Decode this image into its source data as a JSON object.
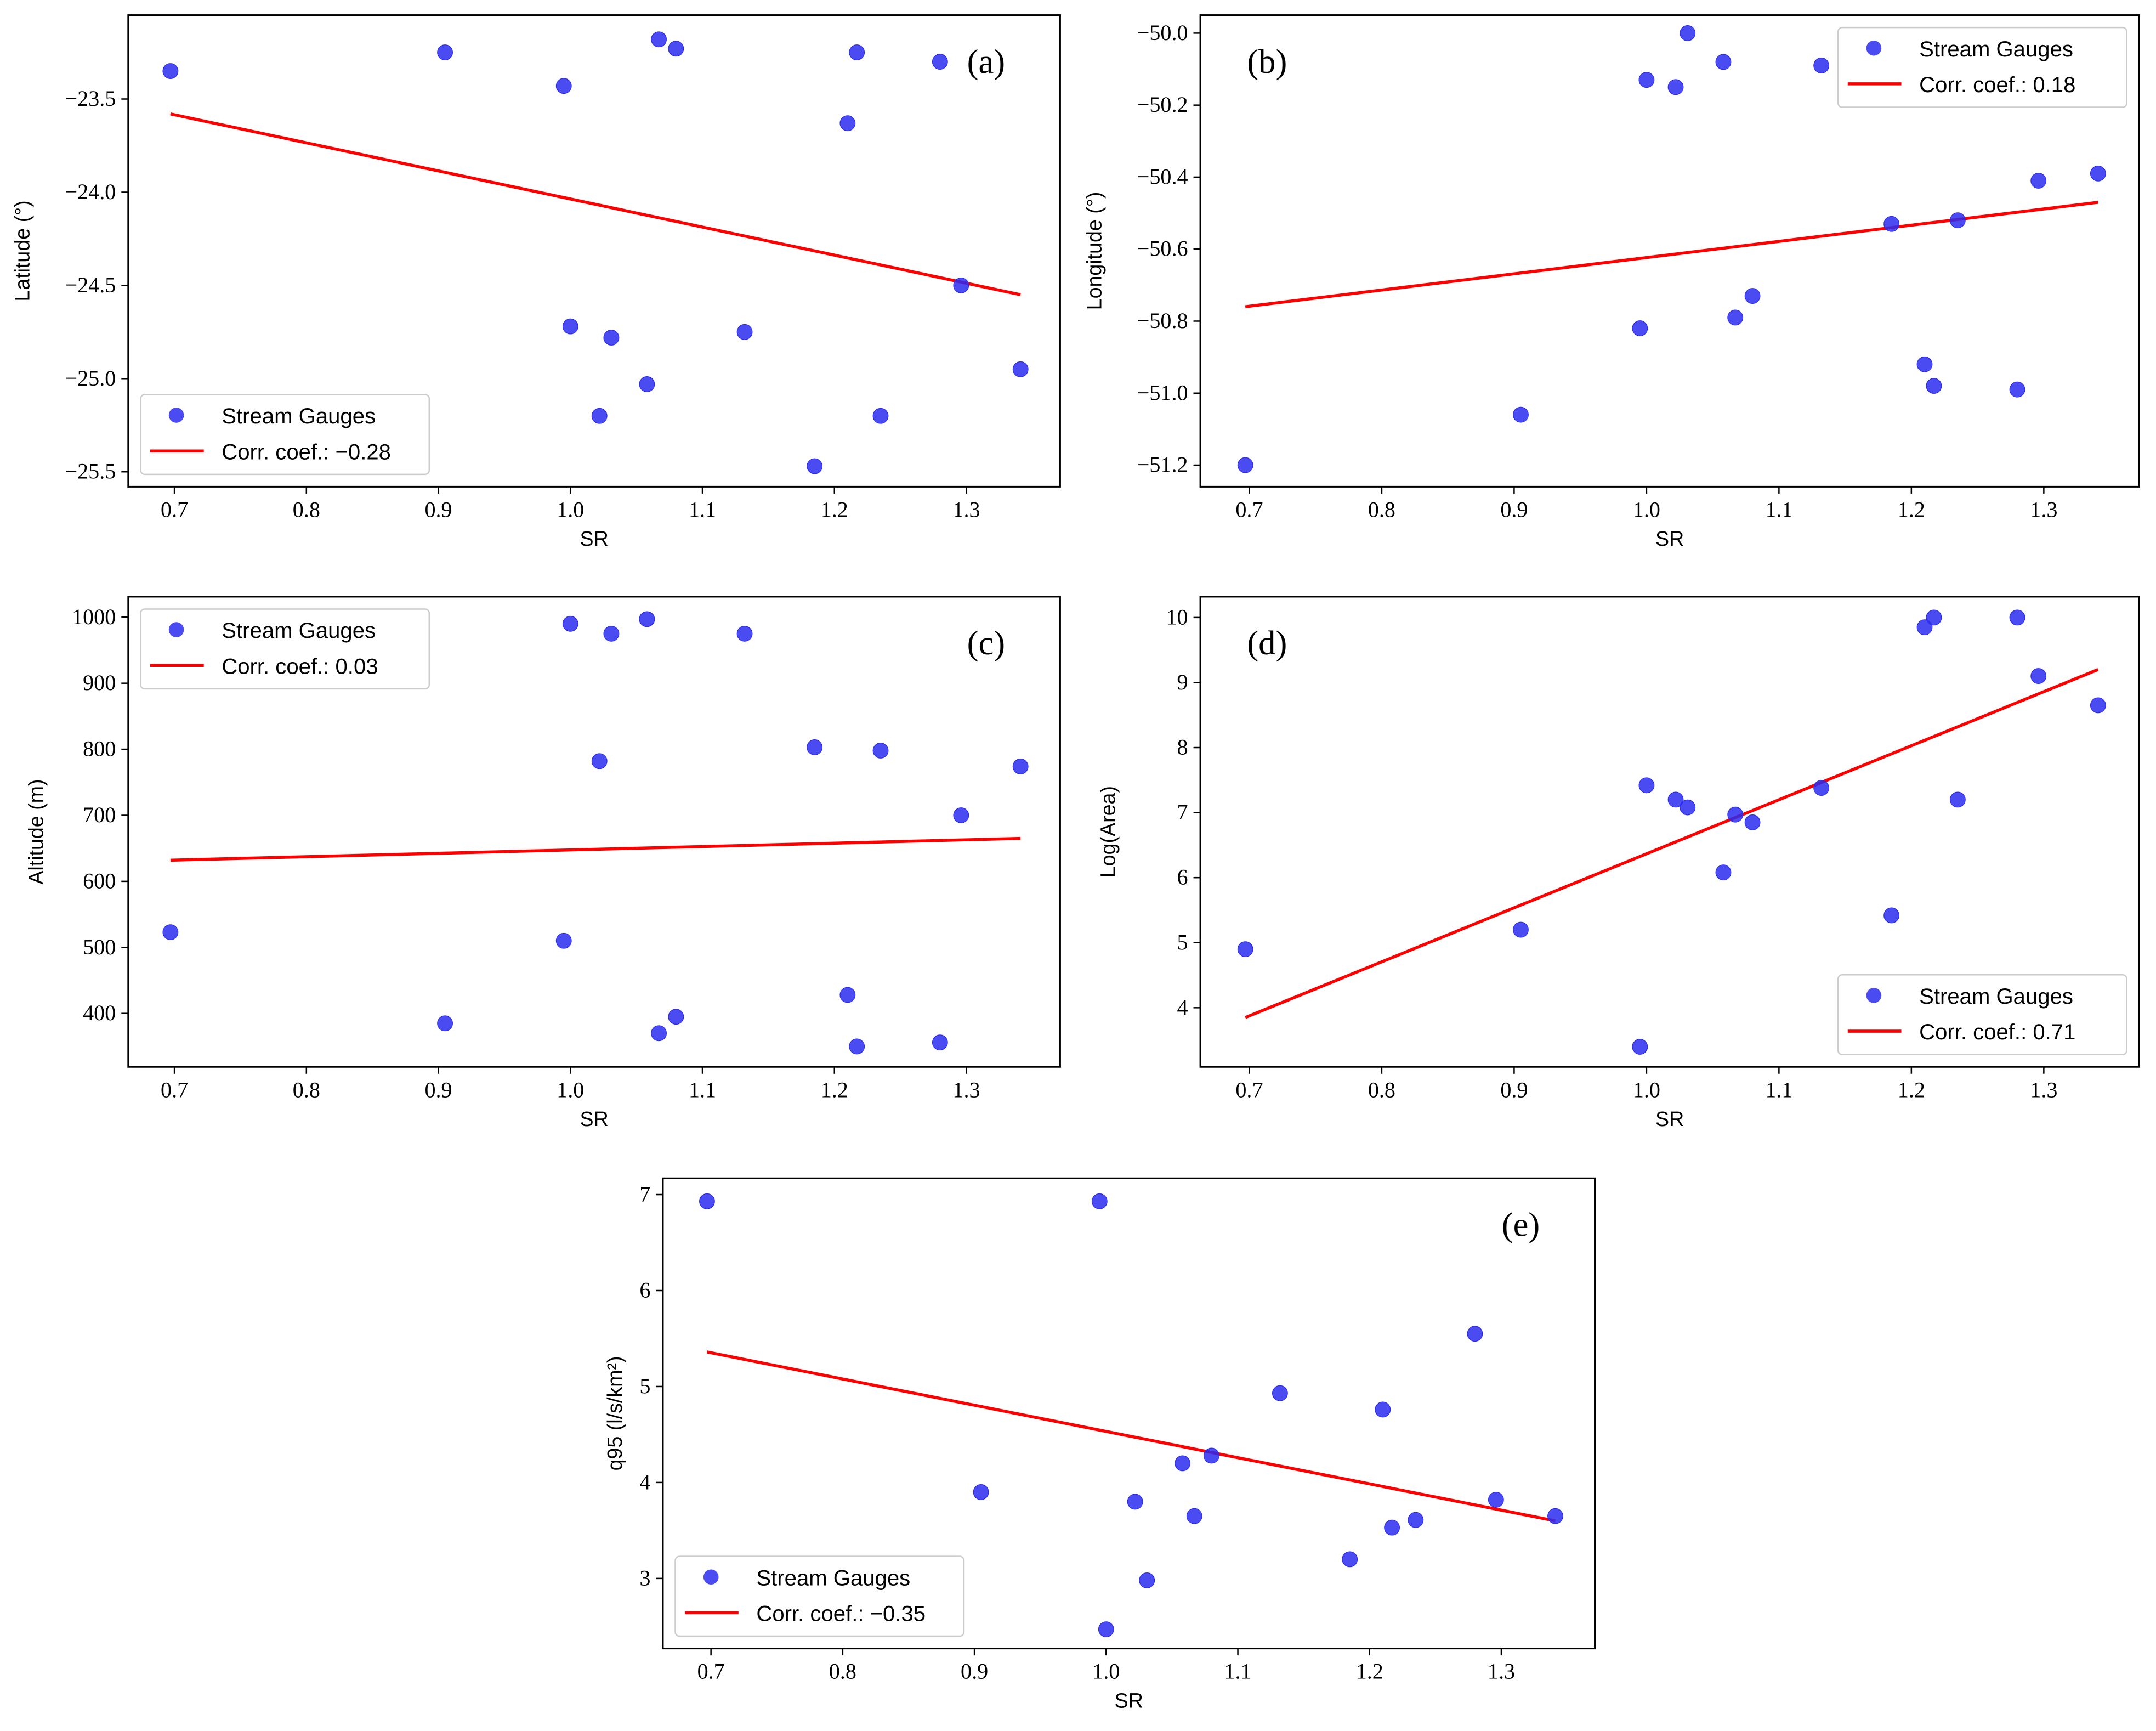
{
  "chart_data": [
    {
      "type": "scatter",
      "panel_label": "(a)",
      "xlabel": "SR",
      "ylabel": "Latitude (°)",
      "xlim": [
        0.665,
        1.371
      ],
      "ylim": [
        -25.58,
        -23.05
      ],
      "xticks": [
        0.7,
        0.8,
        0.9,
        1.0,
        1.1,
        1.2,
        1.3
      ],
      "yticks": [
        -23.5,
        -24.0,
        -24.5,
        -25.0,
        -25.5
      ],
      "ytick_labels": [
        "−23.5",
        "−24.0",
        "−24.5",
        "−25.0",
        "−25.5"
      ],
      "legend": {
        "placement": "lower-left",
        "entries": [
          "Stream Gauges",
          "Corr. coef.: −0.28"
        ]
      },
      "x": [
        0.697,
        0.905,
        0.995,
        1.0,
        1.022,
        1.031,
        1.058,
        1.067,
        1.08,
        1.132,
        1.185,
        1.21,
        1.217,
        1.235,
        1.28,
        1.296,
        1.341
      ],
      "y": [
        -23.35,
        -23.25,
        -23.43,
        -24.72,
        -25.2,
        -24.78,
        -25.03,
        -23.18,
        -23.23,
        -24.75,
        -25.47,
        -23.63,
        -23.25,
        -25.2,
        -23.3,
        -24.5,
        -24.95
      ],
      "fit": {
        "x": [
          0.697,
          1.341
        ],
        "y": [
          -23.58,
          -24.55
        ]
      }
    },
    {
      "type": "scatter",
      "panel_label": "(b)",
      "xlabel": "SR",
      "ylabel": "Longitude (°)",
      "xlim": [
        0.663,
        1.372
      ],
      "ylim": [
        -51.26,
        -49.95
      ],
      "xticks": [
        0.7,
        0.8,
        0.9,
        1.0,
        1.1,
        1.2,
        1.3
      ],
      "yticks": [
        -50.0,
        -50.2,
        -50.4,
        -50.6,
        -50.8,
        -51.0,
        -51.2
      ],
      "ytick_labels": [
        "−50.0",
        "−50.2",
        "−50.4",
        "−50.6",
        "−50.8",
        "−51.0",
        "−51.2"
      ],
      "legend": {
        "placement": "upper-right",
        "entries": [
          "Stream Gauges",
          "Corr. coef.: 0.18"
        ]
      },
      "x": [
        0.697,
        0.905,
        0.995,
        1.0,
        1.022,
        1.031,
        1.058,
        1.067,
        1.08,
        1.132,
        1.185,
        1.21,
        1.217,
        1.235,
        1.28,
        1.296,
        1.341
      ],
      "y": [
        -51.2,
        -51.06,
        -50.82,
        -50.13,
        -50.15,
        -50.0,
        -50.08,
        -50.79,
        -50.73,
        -50.09,
        -50.53,
        -50.92,
        -50.98,
        -50.52,
        -50.99,
        -50.41,
        -50.39
      ],
      "fit": {
        "x": [
          0.697,
          1.341
        ],
        "y": [
          -50.76,
          -50.47
        ]
      }
    },
    {
      "type": "scatter",
      "panel_label": "(c)",
      "xlabel": "SR",
      "ylabel": "Altitude (m)",
      "xlim": [
        0.665,
        1.371
      ],
      "ylim": [
        319,
        1031
      ],
      "xticks": [
        0.7,
        0.8,
        0.9,
        1.0,
        1.1,
        1.2,
        1.3
      ],
      "yticks": [
        1000,
        900,
        800,
        700,
        600,
        500,
        400
      ],
      "ytick_labels": [
        "1000",
        "900",
        "800",
        "700",
        "600",
        "500",
        "400"
      ],
      "legend": {
        "placement": "upper-left",
        "entries": [
          "Stream Gauges",
          "Corr. coef.: 0.03"
        ]
      },
      "x": [
        0.697,
        0.905,
        0.995,
        1.0,
        1.022,
        1.031,
        1.058,
        1.067,
        1.08,
        1.132,
        1.185,
        1.21,
        1.217,
        1.235,
        1.28,
        1.296,
        1.341
      ],
      "y": [
        523,
        385,
        510,
        990,
        782,
        975,
        997,
        370,
        395,
        975,
        803,
        428,
        350,
        798,
        356,
        700,
        774
      ],
      "fit": {
        "x": [
          0.697,
          1.341
        ],
        "y": [
          632,
          665
        ]
      }
    },
    {
      "type": "scatter",
      "panel_label": "(d)",
      "xlabel": "SR",
      "ylabel": "Log(Area)",
      "xlim": [
        0.663,
        1.372
      ],
      "ylim": [
        3.09,
        10.32
      ],
      "xticks": [
        0.7,
        0.8,
        0.9,
        1.0,
        1.1,
        1.2,
        1.3
      ],
      "yticks": [
        10,
        9,
        8,
        7,
        6,
        5,
        4
      ],
      "ytick_labels": [
        "10",
        "9",
        "8",
        "7",
        "6",
        "5",
        "4"
      ],
      "legend": {
        "placement": "lower-right",
        "entries": [
          "Stream Gauges",
          "Corr. coef.: 0.71"
        ]
      },
      "x": [
        0.697,
        0.905,
        0.995,
        1.0,
        1.022,
        1.031,
        1.058,
        1.067,
        1.08,
        1.132,
        1.185,
        1.21,
        1.217,
        1.235,
        1.28,
        1.296,
        1.341
      ],
      "y": [
        4.9,
        5.2,
        3.4,
        7.42,
        7.2,
        7.08,
        6.08,
        6.97,
        6.85,
        7.38,
        5.42,
        9.85,
        10.0,
        7.2,
        10.0,
        9.1,
        8.65
      ],
      "fit": {
        "x": [
          0.697,
          1.341
        ],
        "y": [
          3.85,
          9.2
        ]
      }
    },
    {
      "type": "scatter",
      "panel_label": "(e)",
      "xlabel": "SR",
      "ylabel": "q95 (l/s/km²)",
      "xlim": [
        0.6635,
        1.371
      ],
      "ylim": [
        2.27,
        7.17
      ],
      "xticks": [
        0.7,
        0.8,
        0.9,
        1.0,
        1.1,
        1.2,
        1.3
      ],
      "yticks": [
        7,
        6,
        5,
        4,
        3
      ],
      "ytick_labels": [
        "7",
        "6",
        "5",
        "4",
        "3"
      ],
      "legend": {
        "placement": "lower-left",
        "entries": [
          "Stream Gauges",
          "Corr. coef.: −0.35"
        ]
      },
      "x": [
        0.697,
        0.905,
        0.995,
        1.0,
        1.022,
        1.031,
        1.058,
        1.067,
        1.08,
        1.132,
        1.185,
        1.21,
        1.217,
        1.235,
        1.28,
        1.296,
        1.341
      ],
      "y": [
        6.93,
        3.9,
        6.93,
        2.47,
        3.8,
        2.98,
        4.2,
        3.65,
        4.28,
        4.93,
        3.2,
        4.76,
        3.53,
        3.61,
        5.55,
        3.82,
        3.65
      ],
      "fit": {
        "x": [
          0.697,
          1.341
        ],
        "y": [
          5.36,
          3.6
        ]
      }
    }
  ],
  "colors": {
    "points": "#2b2bf0",
    "fit": "#ff0000"
  }
}
